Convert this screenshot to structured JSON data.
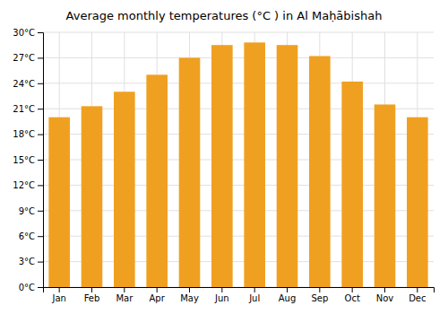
{
  "chart_data": {
    "type": "bar",
    "title": "Average monthly temperatures (°C ) in Al Maḥābishah",
    "categories": [
      "Jan",
      "Feb",
      "Mar",
      "Apr",
      "May",
      "Jun",
      "Jul",
      "Aug",
      "Sep",
      "Oct",
      "Nov",
      "Dec"
    ],
    "values": [
      20.0,
      21.3,
      23.0,
      25.0,
      27.0,
      28.5,
      28.8,
      28.5,
      27.2,
      24.2,
      21.5,
      20.0
    ],
    "color": "#F0A020",
    "ylim": [
      0,
      30
    ],
    "yticks": [
      {
        "value": 0,
        "label": "0°C"
      },
      {
        "value": 3,
        "label": "3°C"
      },
      {
        "value": 6,
        "label": "6°C"
      },
      {
        "value": 9,
        "label": "9°C"
      },
      {
        "value": 12,
        "label": "12°C"
      },
      {
        "value": 15,
        "label": "15°C"
      },
      {
        "value": 18,
        "label": "18°C"
      },
      {
        "value": 21,
        "label": "21°C"
      },
      {
        "value": 24,
        "label": "24°C"
      },
      {
        "value": 27,
        "label": "27°C"
      },
      {
        "value": 30,
        "label": "30°C"
      }
    ],
    "grid": true
  }
}
